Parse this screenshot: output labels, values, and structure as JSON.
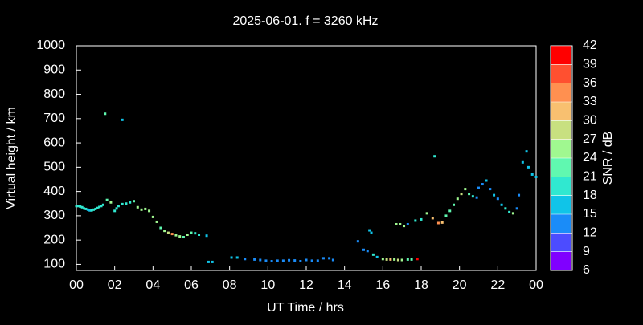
{
  "chart_data": {
    "type": "scatter",
    "title": "2025-06-01. f = 3260 kHz",
    "x_label": "UT Time / hrs",
    "y_label": "Virtual height / km",
    "xlim": [
      0,
      24
    ],
    "xticks": [
      {
        "value": 0,
        "label": "00"
      },
      {
        "value": 2,
        "label": "02"
      },
      {
        "value": 4,
        "label": "04"
      },
      {
        "value": 6,
        "label": "06"
      },
      {
        "value": 8,
        "label": "08"
      },
      10,
      12,
      14,
      16,
      18,
      20,
      22,
      {
        "value": 24,
        "label": "00"
      }
    ],
    "ylim": [
      75,
      1000
    ],
    "yticks": [
      100,
      200,
      300,
      400,
      500,
      600,
      700,
      800,
      900,
      1000
    ],
    "colorbar": {
      "label": "SNR / dB",
      "lim": [
        6,
        42
      ],
      "ticks": [
        6,
        9,
        12,
        15,
        18,
        21,
        24,
        27,
        30,
        33,
        36,
        39,
        42
      ],
      "colors": [
        "#8000ff",
        "#4c4cff",
        "#1a8cf8",
        "#10c4e8",
        "#30e8d0",
        "#60f8b0",
        "#a0f890",
        "#c8e080",
        "#f8c070",
        "#ff9050",
        "#ff5030",
        "#ff0000"
      ]
    },
    "x": [
      0,
      0.1,
      0.2,
      0.3,
      0.4,
      0.5,
      0.6,
      0.7,
      0.8,
      0.9,
      1.0,
      1.1,
      1.2,
      1.3,
      1.4,
      1.5,
      1.6,
      1.8,
      2.0,
      2.1,
      2.2,
      2.4,
      2.4,
      2.6,
      2.8,
      3.0,
      3.2,
      3.4,
      3.6,
      3.8,
      4.0,
      4.2,
      4.4,
      4.6,
      4.8,
      5.0,
      5.2,
      5.4,
      5.6,
      5.8,
      6.0,
      6.2,
      6.4,
      6.8,
      6.9,
      7.1,
      8.1,
      8.4,
      8.8,
      9.3,
      9.6,
      9.9,
      10.2,
      10.5,
      10.8,
      11.1,
      11.4,
      11.7,
      12.0,
      12.3,
      12.6,
      12.9,
      13.2,
      13.4,
      14.7,
      15.0,
      15.2,
      15.3,
      15.4,
      15.5,
      15.7,
      16.0,
      16.2,
      16.4,
      16.6,
      16.8,
      17.0,
      17.3,
      17.5,
      17.8,
      16.7,
      16.9,
      17.1,
      17.3,
      17.7,
      18.0,
      18.3,
      18.6,
      18.7,
      18.9,
      19.1,
      19.3,
      19.5,
      19.7,
      19.9,
      20.1,
      20.3,
      20.5,
      20.7,
      20.9,
      21.0,
      21.2,
      21.4,
      21.6,
      21.8,
      22.0,
      22.2,
      22.4,
      22.6,
      22.8,
      23.0,
      23.1,
      23.3,
      23.5,
      23.6,
      23.8,
      24.0
    ],
    "y": [
      340,
      340,
      338,
      335,
      330,
      328,
      325,
      322,
      322,
      325,
      328,
      332,
      336,
      340,
      345,
      720,
      365,
      355,
      320,
      330,
      340,
      348,
      695,
      350,
      355,
      360,
      335,
      325,
      328,
      320,
      295,
      275,
      250,
      238,
      230,
      225,
      220,
      215,
      212,
      222,
      230,
      228,
      222,
      218,
      110,
      110,
      128,
      128,
      122,
      120,
      118,
      115,
      113,
      115,
      115,
      117,
      116,
      113,
      118,
      115,
      115,
      125,
      125,
      118,
      195,
      160,
      155,
      240,
      230,
      140,
      130,
      122,
      120,
      120,
      120,
      118,
      118,
      120,
      120,
      122,
      265,
      265,
      258,
      265,
      280,
      285,
      310,
      290,
      545,
      270,
      272,
      300,
      320,
      345,
      370,
      390,
      410,
      390,
      380,
      375,
      415,
      430,
      445,
      410,
      385,
      370,
      345,
      330,
      315,
      310,
      330,
      385,
      520,
      565,
      500,
      470,
      460
    ],
    "snr": [
      18,
      18,
      18,
      18,
      18,
      18,
      15,
      15,
      18,
      18,
      18,
      18,
      18,
      18,
      18,
      21,
      21,
      24,
      18,
      18,
      18,
      18,
      15,
      18,
      18,
      21,
      24,
      24,
      24,
      24,
      24,
      24,
      21,
      24,
      27,
      33,
      24,
      24,
      21,
      24,
      21,
      18,
      18,
      15,
      15,
      15,
      15,
      15,
      12,
      12,
      12,
      12,
      12,
      12,
      12,
      12,
      12,
      12,
      12,
      12,
      12,
      12,
      12,
      12,
      12,
      12,
      12,
      15,
      15,
      18,
      15,
      24,
      27,
      30,
      24,
      27,
      24,
      21,
      21,
      39,
      24,
      24,
      24,
      12,
      18,
      18,
      24,
      30,
      18,
      33,
      30,
      21,
      21,
      21,
      24,
      27,
      24,
      21,
      18,
      12,
      12,
      12,
      15,
      12,
      15,
      12,
      15,
      18,
      18,
      24,
      12,
      12,
      15,
      15,
      15,
      15,
      15
    ]
  }
}
